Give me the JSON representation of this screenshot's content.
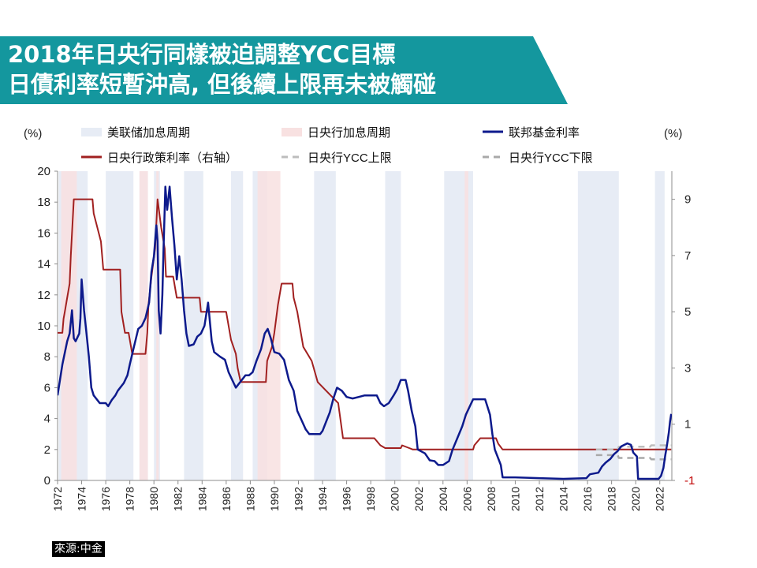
{
  "title": {
    "line1": "2018年日央行同樣被迫調整YCC目標",
    "line2": "日債利率短暫沖高, 但後續上限再未被觸碰"
  },
  "source": "來源:中金",
  "colors": {
    "banner": "#14979e",
    "fed_shade": "#e7ecf5",
    "boj_shade": "#f8e1e1",
    "fed_rate": "#0d1a8c",
    "boj_rate": "#a12020",
    "ycc_upper": "#bdbdbd",
    "ycc_lower": "#a9a9a9"
  },
  "chart_data": {
    "type": "line",
    "left_unit": "(%)",
    "right_unit": "(%)",
    "x_ticks": [
      "1972",
      "1974",
      "1976",
      "1978",
      "1980",
      "1982",
      "1984",
      "1986",
      "1988",
      "1990",
      "1992",
      "1994",
      "1996",
      "1998",
      "2000",
      "2002",
      "2004",
      "2006",
      "2008",
      "2010",
      "2012",
      "2014",
      "2016",
      "2018",
      "2020",
      "2022"
    ],
    "y_left": {
      "range": [
        0,
        20
      ],
      "ticks": [
        "0",
        "2",
        "4",
        "6",
        "8",
        "10",
        "12",
        "14",
        "16",
        "18",
        "20"
      ]
    },
    "y_right": {
      "range": [
        -1,
        10
      ],
      "ticks": [
        "-1",
        "1",
        "3",
        "5",
        "7",
        "9"
      ]
    },
    "legend": [
      {
        "label": "美联储加息周期",
        "kind": "fed_shade"
      },
      {
        "label": "日央行加息周期",
        "kind": "boj_shade"
      },
      {
        "label": "联邦基金利率",
        "kind": "fed_rate"
      },
      {
        "label": "日央行政策利率（右轴）",
        "kind": "boj_rate"
      },
      {
        "label": "日央行YCC上限",
        "kind": "ycc_upper"
      },
      {
        "label": "日央行YCC下限",
        "kind": "ycc_lower"
      }
    ],
    "fed_hike_periods": [
      [
        1972.1,
        1974.5
      ],
      [
        1976.0,
        1978.3
      ],
      [
        1978.8,
        1979.5
      ],
      [
        1980.0,
        1980.5
      ],
      [
        1982.5,
        1984.1
      ],
      [
        1986.4,
        1987.4
      ],
      [
        1988.2,
        1989.4
      ],
      [
        1993.3,
        1995.1
      ],
      [
        1999.2,
        2000.5
      ],
      [
        2004.1,
        2006.5
      ],
      [
        2015.2,
        2018.6
      ],
      [
        2021.6,
        2022.4
      ]
    ],
    "boj_hike_periods": [
      [
        1972.3,
        1973.6
      ],
      [
        1978.8,
        1979.5
      ],
      [
        1980.2,
        1980.4
      ],
      [
        1988.6,
        1990.5
      ],
      [
        2005.8,
        2006.1
      ]
    ],
    "fed_funds_rate": [
      [
        1972.0,
        5.5
      ],
      [
        1972.4,
        7.5
      ],
      [
        1972.8,
        9.0
      ],
      [
        1973.0,
        9.5
      ],
      [
        1973.2,
        11.0
      ],
      [
        1973.35,
        9.2
      ],
      [
        1973.5,
        9.0
      ],
      [
        1973.8,
        9.5
      ],
      [
        1973.9,
        10.5
      ],
      [
        1974.0,
        13.0
      ],
      [
        1974.2,
        11.0
      ],
      [
        1974.4,
        9.5
      ],
      [
        1974.6,
        8.0
      ],
      [
        1974.8,
        6.0
      ],
      [
        1975.0,
        5.5
      ],
      [
        1975.2,
        5.3
      ],
      [
        1975.5,
        5.0
      ],
      [
        1975.8,
        5.0
      ],
      [
        1976.0,
        5.0
      ],
      [
        1976.2,
        4.8
      ],
      [
        1976.5,
        5.2
      ],
      [
        1976.8,
        5.5
      ],
      [
        1977.0,
        5.8
      ],
      [
        1977.5,
        6.3
      ],
      [
        1977.8,
        6.8
      ],
      [
        1978.0,
        7.5
      ],
      [
        1978.3,
        8.5
      ],
      [
        1978.7,
        9.8
      ],
      [
        1979.0,
        10.0
      ],
      [
        1979.3,
        10.5
      ],
      [
        1979.6,
        11.5
      ],
      [
        1979.8,
        13.5
      ],
      [
        1980.0,
        14.5
      ],
      [
        1980.2,
        16.5
      ],
      [
        1980.3,
        15.5
      ],
      [
        1980.4,
        11.0
      ],
      [
        1980.55,
        9.5
      ],
      [
        1980.7,
        12.0
      ],
      [
        1980.8,
        15.0
      ],
      [
        1980.95,
        19.0
      ],
      [
        1981.1,
        17.5
      ],
      [
        1981.3,
        19.0
      ],
      [
        1981.5,
        17.0
      ],
      [
        1981.7,
        15.2
      ],
      [
        1981.9,
        13.0
      ],
      [
        1982.1,
        14.5
      ],
      [
        1982.3,
        13.0
      ],
      [
        1982.5,
        11.0
      ],
      [
        1982.7,
        9.5
      ],
      [
        1982.9,
        8.7
      ],
      [
        1983.3,
        8.8
      ],
      [
        1983.6,
        9.3
      ],
      [
        1983.9,
        9.5
      ],
      [
        1984.2,
        10.0
      ],
      [
        1984.5,
        11.5
      ],
      [
        1984.8,
        9.0
      ],
      [
        1985.0,
        8.3
      ],
      [
        1985.5,
        8.0
      ],
      [
        1985.9,
        7.8
      ],
      [
        1986.2,
        7.0
      ],
      [
        1986.5,
        6.5
      ],
      [
        1986.8,
        6.0
      ],
      [
        1987.0,
        6.2
      ],
      [
        1987.3,
        6.5
      ],
      [
        1987.6,
        6.8
      ],
      [
        1987.9,
        6.8
      ],
      [
        1988.2,
        7.0
      ],
      [
        1988.5,
        7.7
      ],
      [
        1988.9,
        8.5
      ],
      [
        1989.2,
        9.5
      ],
      [
        1989.45,
        9.8
      ],
      [
        1989.7,
        9.2
      ],
      [
        1990.0,
        8.3
      ],
      [
        1990.4,
        8.2
      ],
      [
        1990.8,
        7.8
      ],
      [
        1991.2,
        6.5
      ],
      [
        1991.6,
        5.8
      ],
      [
        1991.9,
        4.5
      ],
      [
        1992.2,
        4.0
      ],
      [
        1992.6,
        3.3
      ],
      [
        1992.9,
        3.0
      ],
      [
        1993.3,
        3.0
      ],
      [
        1993.8,
        3.0
      ],
      [
        1994.0,
        3.2
      ],
      [
        1994.3,
        3.8
      ],
      [
        1994.6,
        4.4
      ],
      [
        1994.9,
        5.3
      ],
      [
        1995.2,
        6.0
      ],
      [
        1995.6,
        5.8
      ],
      [
        1996.0,
        5.4
      ],
      [
        1996.5,
        5.3
      ],
      [
        1997.0,
        5.4
      ],
      [
        1997.5,
        5.5
      ],
      [
        1998.0,
        5.5
      ],
      [
        1998.5,
        5.5
      ],
      [
        1998.8,
        5.0
      ],
      [
        1999.1,
        4.8
      ],
      [
        1999.5,
        5.0
      ],
      [
        1999.9,
        5.5
      ],
      [
        2000.2,
        5.9
      ],
      [
        2000.5,
        6.5
      ],
      [
        2000.9,
        6.5
      ],
      [
        2001.1,
        5.8
      ],
      [
        2001.4,
        4.5
      ],
      [
        2001.7,
        3.5
      ],
      [
        2001.9,
        2.0
      ],
      [
        2002.5,
        1.75
      ],
      [
        2002.9,
        1.3
      ],
      [
        2003.3,
        1.25
      ],
      [
        2003.6,
        1.0
      ],
      [
        2004.0,
        1.0
      ],
      [
        2004.5,
        1.25
      ],
      [
        2004.8,
        2.0
      ],
      [
        2005.2,
        2.75
      ],
      [
        2005.6,
        3.5
      ],
      [
        2005.9,
        4.25
      ],
      [
        2006.2,
        4.75
      ],
      [
        2006.5,
        5.25
      ],
      [
        2007.0,
        5.25
      ],
      [
        2007.5,
        5.25
      ],
      [
        2007.7,
        4.75
      ],
      [
        2007.9,
        4.25
      ],
      [
        2008.1,
        3.0
      ],
      [
        2008.3,
        2.0
      ],
      [
        2008.8,
        1.0
      ],
      [
        2008.95,
        0.2
      ],
      [
        2010.0,
        0.2
      ],
      [
        2012.0,
        0.15
      ],
      [
        2014.0,
        0.1
      ],
      [
        2015.9,
        0.15
      ],
      [
        2016.2,
        0.4
      ],
      [
        2016.9,
        0.5
      ],
      [
        2017.2,
        0.9
      ],
      [
        2017.5,
        1.15
      ],
      [
        2017.9,
        1.4
      ],
      [
        2018.2,
        1.7
      ],
      [
        2018.5,
        1.9
      ],
      [
        2018.8,
        2.2
      ],
      [
        2019.3,
        2.4
      ],
      [
        2019.6,
        2.3
      ],
      [
        2019.8,
        1.8
      ],
      [
        2020.1,
        1.55
      ],
      [
        2020.2,
        0.1
      ],
      [
        2021.0,
        0.1
      ],
      [
        2021.9,
        0.1
      ],
      [
        2022.1,
        0.3
      ],
      [
        2022.3,
        0.8
      ],
      [
        2022.45,
        1.6
      ],
      [
        2022.6,
        2.3
      ],
      [
        2022.75,
        3.1
      ],
      [
        2022.85,
        3.8
      ],
      [
        2022.95,
        4.3
      ]
    ],
    "boj_policy_rate": [
      [
        1972.0,
        4.25
      ],
      [
        1972.4,
        4.25
      ],
      [
        1972.5,
        4.75
      ],
      [
        1972.6,
        5.0
      ],
      [
        1972.8,
        5.5
      ],
      [
        1973.0,
        6.0
      ],
      [
        1973.1,
        7.0
      ],
      [
        1973.35,
        9.0
      ],
      [
        1974.9,
        9.0
      ],
      [
        1975.0,
        8.5
      ],
      [
        1975.3,
        8.0
      ],
      [
        1975.6,
        7.5
      ],
      [
        1975.8,
        6.5
      ],
      [
        1977.2,
        6.5
      ],
      [
        1977.3,
        5.0
      ],
      [
        1977.6,
        4.25
      ],
      [
        1977.9,
        4.25
      ],
      [
        1978.2,
        3.5
      ],
      [
        1979.3,
        3.5
      ],
      [
        1979.45,
        4.25
      ],
      [
        1979.55,
        5.25
      ],
      [
        1979.8,
        6.25
      ],
      [
        1980.1,
        7.25
      ],
      [
        1980.3,
        9.0
      ],
      [
        1980.6,
        8.0
      ],
      [
        1980.9,
        7.25
      ],
      [
        1981.0,
        6.25
      ],
      [
        1981.6,
        6.25
      ],
      [
        1981.9,
        5.5
      ],
      [
        1983.8,
        5.5
      ],
      [
        1983.9,
        5.0
      ],
      [
        1986.0,
        5.0
      ],
      [
        1986.2,
        4.5
      ],
      [
        1986.4,
        4.0
      ],
      [
        1986.8,
        3.5
      ],
      [
        1986.95,
        3.0
      ],
      [
        1987.2,
        2.5
      ],
      [
        1989.3,
        2.5
      ],
      [
        1989.4,
        3.25
      ],
      [
        1989.8,
        3.75
      ],
      [
        1990.0,
        4.25
      ],
      [
        1990.3,
        5.25
      ],
      [
        1990.6,
        6.0
      ],
      [
        1991.5,
        6.0
      ],
      [
        1991.6,
        5.5
      ],
      [
        1991.9,
        5.0
      ],
      [
        1992.1,
        4.5
      ],
      [
        1992.4,
        3.75
      ],
      [
        1993.1,
        3.25
      ],
      [
        1993.6,
        2.5
      ],
      [
        1995.3,
        1.75
      ],
      [
        1995.7,
        0.5
      ],
      [
        1998.3,
        0.5
      ],
      [
        1998.8,
        0.25
      ],
      [
        1999.2,
        0.15
      ],
      [
        2000.5,
        0.15
      ],
      [
        2000.6,
        0.25
      ],
      [
        2001.2,
        0.15
      ],
      [
        2001.5,
        0.1
      ],
      [
        2006.5,
        0.1
      ],
      [
        2006.6,
        0.25
      ],
      [
        2007.1,
        0.5
      ],
      [
        2008.4,
        0.5
      ],
      [
        2008.6,
        0.3
      ],
      [
        2008.95,
        0.1
      ],
      [
        2016.1,
        0.1
      ],
      [
        2022.95,
        0.1
      ]
    ],
    "ycc_upper": [
      [
        2016.7,
        0.1
      ],
      [
        2018.5,
        0.1
      ],
      [
        2018.6,
        0.2
      ],
      [
        2021.2,
        0.2
      ],
      [
        2021.3,
        0.25
      ],
      [
        2022.95,
        0.25
      ]
    ],
    "ycc_lower": [
      [
        2016.7,
        -0.1
      ],
      [
        2018.5,
        -0.1
      ],
      [
        2018.6,
        -0.2
      ],
      [
        2021.2,
        -0.2
      ],
      [
        2021.3,
        -0.25
      ],
      [
        2022.95,
        -0.25
      ]
    ]
  }
}
